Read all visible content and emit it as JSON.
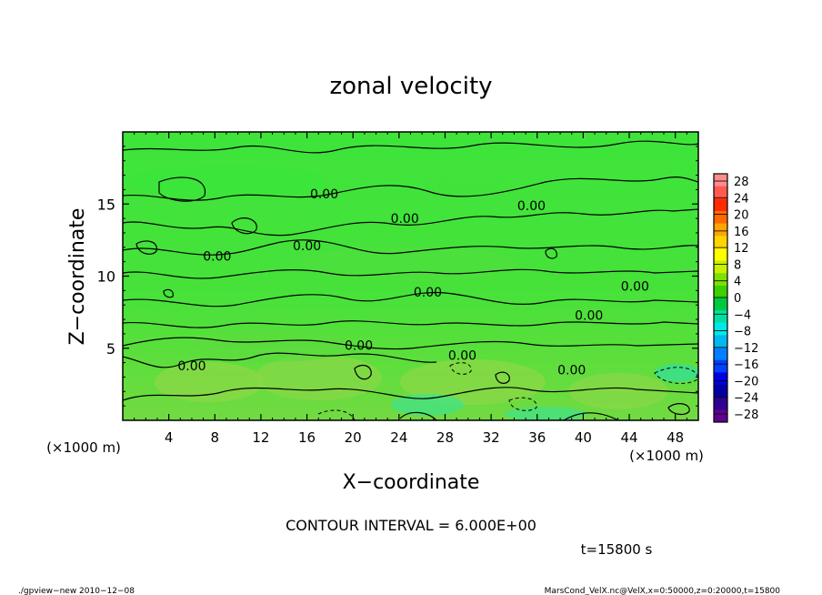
{
  "chart_data": {
    "type": "heatmap",
    "title": "zonal velocity",
    "xlabel": "X−coordinate",
    "ylabel": "Z−coordinate",
    "x_unit": "(×1000 m)",
    "y_unit": "(×1000 m)",
    "xlim": [
      0,
      50
    ],
    "ylim": [
      0,
      20
    ],
    "x_ticks": [
      4,
      8,
      12,
      16,
      20,
      24,
      28,
      32,
      36,
      40,
      44,
      48
    ],
    "y_ticks": [
      5,
      10,
      15
    ],
    "contour_interval_text": "CONTOUR INTERVAL = 6.000E+00",
    "time_text": "t=15800 s",
    "contour_labels": [
      {
        "text": "0.00",
        "x": 17.5,
        "y": 15.7
      },
      {
        "text": "0.00",
        "x": 24.5,
        "y": 14.0
      },
      {
        "text": "0.00",
        "x": 35.5,
        "y": 14.9
      },
      {
        "text": "0.00",
        "x": 16.0,
        "y": 12.1
      },
      {
        "text": "0.00",
        "x": 8.2,
        "y": 11.4
      },
      {
        "text": "0.00",
        "x": 26.5,
        "y": 8.9
      },
      {
        "text": "0.00",
        "x": 44.5,
        "y": 9.3
      },
      {
        "text": "0.00",
        "x": 40.5,
        "y": 7.3
      },
      {
        "text": "0.00",
        "x": 20.5,
        "y": 5.2
      },
      {
        "text": "0.00",
        "x": 29.5,
        "y": 4.5
      },
      {
        "text": "0.00",
        "x": 6.0,
        "y": 3.8
      },
      {
        "text": "0.00",
        "x": 39.0,
        "y": 3.5
      }
    ],
    "colorbar": {
      "levels": [
        "28",
        "24",
        "20",
        "16",
        "12",
        "8",
        "4",
        "0",
        "−4",
        "−8",
        "−12",
        "−16",
        "−20",
        "−24",
        "−28"
      ],
      "colors": [
        "#ff8c8c",
        "#ff5a50",
        "#ff2a00",
        "#ff6a00",
        "#ffa500",
        "#ffd400",
        "#ffff00",
        "#c8f000",
        "#7ee000",
        "#3cd000",
        "#00c840",
        "#00e0a0",
        "#00e8e8",
        "#00b8f0",
        "#0080ff",
        "#0040ff",
        "#0000e0",
        "#0000a0",
        "#300090",
        "#600090"
      ]
    }
  },
  "footer": {
    "left": "./gpview−new   2010−12−08",
    "right": "MarsCond_VelX.nc@VelX,x=0:50000,z=0:20000,t=15800"
  }
}
